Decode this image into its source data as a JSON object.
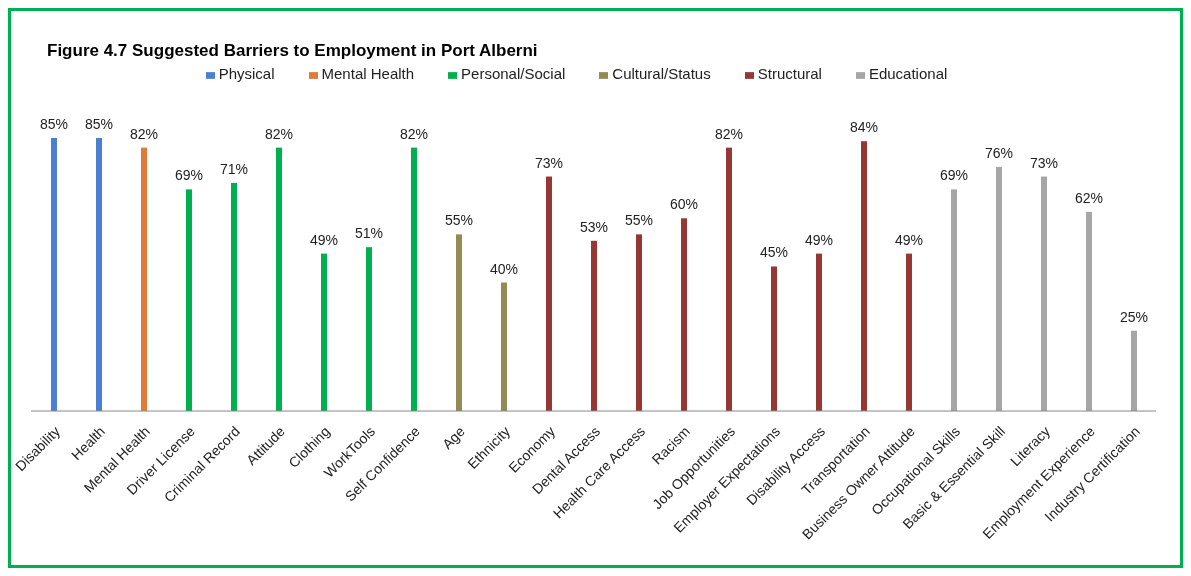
{
  "chart_data": {
    "type": "bar",
    "title": "Figure 4.7 Suggested Barriers to Employment in Port Alberni",
    "stacked": true,
    "legend": "top",
    "grid": false,
    "tick_labels": "x",
    "categories": [
      "Disability",
      "Health",
      "Mental Health",
      "Driver License",
      "Criminal Record",
      "Attitude",
      "Clothing",
      "WorkTools",
      "Self Confidence",
      "Age",
      "Ethnicity",
      "Economy",
      "Dental Access",
      "Health Care Access",
      "Racism",
      "Job Opportunities",
      "Employer Expectations",
      "Disability Access",
      "Transportation",
      "Business Owner Attitude",
      "Occupational Skills",
      "Basic & Essential Skill",
      "Literacy",
      "Employment Experience",
      "Industry Certification"
    ],
    "series": [
      {
        "name": "Physical",
        "color": "#4a7fd4",
        "values": [
          85,
          85,
          null,
          null,
          null,
          null,
          null,
          null,
          null,
          null,
          null,
          null,
          null,
          null,
          null,
          null,
          null,
          null,
          null,
          null,
          null,
          null,
          null,
          null,
          null
        ],
        "value_labels": [
          "85%",
          "85%",
          null,
          null,
          null,
          null,
          null,
          null,
          null,
          null,
          null,
          null,
          null,
          null,
          null,
          null,
          null,
          null,
          null,
          null,
          null,
          null,
          null,
          null,
          null
        ]
      },
      {
        "name": "Mental Health",
        "color": "#e07b39",
        "values": [
          null,
          null,
          82,
          null,
          null,
          null,
          null,
          null,
          null,
          null,
          null,
          null,
          null,
          null,
          null,
          null,
          null,
          null,
          null,
          null,
          null,
          null,
          null,
          null,
          null
        ],
        "value_labels": [
          null,
          null,
          "82%",
          null,
          null,
          null,
          null,
          null,
          null,
          null,
          null,
          null,
          null,
          null,
          null,
          null,
          null,
          null,
          null,
          null,
          null,
          null,
          null,
          null,
          null
        ]
      },
      {
        "name": "Personal/Social",
        "color": "#00b050",
        "values": [
          null,
          null,
          null,
          69,
          71,
          82,
          49,
          51,
          82,
          null,
          null,
          null,
          null,
          null,
          null,
          null,
          null,
          null,
          null,
          null,
          null,
          null,
          null,
          null,
          null
        ],
        "value_labels": [
          null,
          null,
          null,
          "69%",
          "71%",
          "82%",
          "49%",
          "51%",
          "82%",
          null,
          null,
          null,
          null,
          null,
          null,
          null,
          null,
          null,
          null,
          null,
          null,
          null,
          null,
          null,
          null
        ]
      },
      {
        "name": "Cultural/Status",
        "color": "#948a54",
        "values": [
          null,
          null,
          null,
          null,
          null,
          null,
          null,
          null,
          null,
          55,
          40,
          null,
          null,
          null,
          null,
          null,
          null,
          null,
          null,
          null,
          null,
          null,
          null,
          null,
          null
        ],
        "value_labels": [
          null,
          null,
          null,
          null,
          null,
          null,
          null,
          null,
          null,
          "55%",
          "40%",
          null,
          null,
          null,
          null,
          null,
          null,
          null,
          null,
          null,
          null,
          null,
          null,
          null,
          null
        ]
      },
      {
        "name": "Structural",
        "color": "#953735",
        "values": [
          null,
          null,
          null,
          null,
          null,
          null,
          null,
          null,
          null,
          null,
          null,
          73,
          53,
          55,
          60,
          82,
          45,
          49,
          84,
          49,
          null,
          null,
          null,
          null,
          null
        ],
        "value_labels": [
          null,
          null,
          null,
          null,
          null,
          null,
          null,
          null,
          null,
          null,
          null,
          "73%",
          "53%",
          "55%",
          "60%",
          "82%",
          "45%",
          "49%",
          "84%",
          "49%",
          null,
          null,
          null,
          null,
          null
        ]
      },
      {
        "name": "Educational",
        "color": "#a6a6a6",
        "values": [
          null,
          null,
          null,
          null,
          null,
          null,
          null,
          null,
          null,
          null,
          null,
          null,
          null,
          null,
          null,
          null,
          null,
          null,
          null,
          null,
          69,
          76,
          73,
          62,
          25
        ],
        "value_labels": [
          null,
          null,
          null,
          null,
          null,
          null,
          null,
          null,
          null,
          null,
          null,
          null,
          null,
          null,
          null,
          null,
          null,
          null,
          null,
          null,
          "69%",
          "76%",
          "73%",
          "62%",
          "25%"
        ]
      }
    ]
  }
}
